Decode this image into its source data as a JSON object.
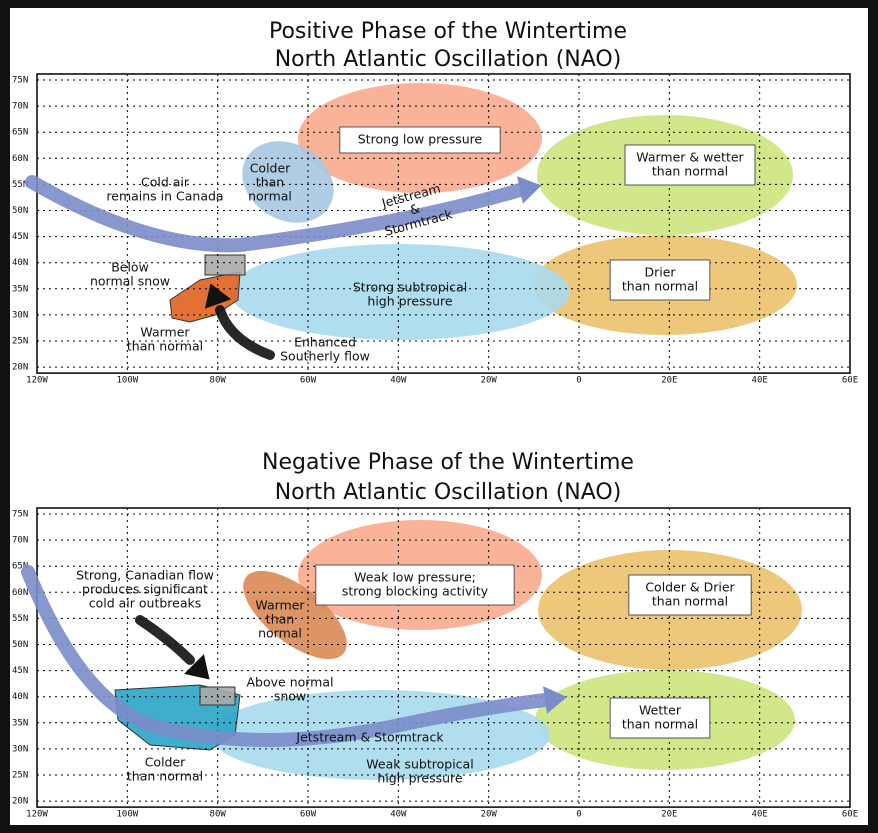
{
  "panels": [
    {
      "title": [
        "Positive Phase of the Wintertime",
        "North Atlantic Oscillation (NAO)"
      ],
      "lat_labels": [
        "75N",
        "70N",
        "65N",
        "60N",
        "55N",
        "50N",
        "45N",
        "40N",
        "35N",
        "30N",
        "25N",
        "20N"
      ],
      "lon_labels": [
        "120W",
        "100W",
        "80W",
        "60W",
        "40W",
        "20W",
        "0",
        "20E",
        "40E",
        "60E"
      ],
      "annotations": [
        {
          "lines": [
            "Strong low pressure"
          ]
        },
        {
          "lines": [
            "Warmer & wetter",
            "than normal"
          ]
        },
        {
          "lines": [
            "Cold air",
            "remains in Canada"
          ]
        },
        {
          "lines": [
            "Colder",
            "than",
            "normal"
          ]
        },
        {
          "lines": [
            "Jetstream",
            "&",
            "Stormtrack"
          ]
        },
        {
          "lines": [
            "Below",
            "normal snow"
          ]
        },
        {
          "lines": [
            "Strong subtropical",
            "high pressure"
          ]
        },
        {
          "lines": [
            "Drier",
            "than normal"
          ]
        },
        {
          "lines": [
            "Warmer",
            "than normal"
          ]
        },
        {
          "lines": [
            "Enhanced",
            "Southerly flow"
          ]
        }
      ]
    },
    {
      "title": [
        "Negative Phase of the Wintertime",
        "North Atlantic Oscillation (NAO)"
      ],
      "lat_labels": [
        "75N",
        "70N",
        "65N",
        "60N",
        "55N",
        "50N",
        "45N",
        "40N",
        "35N",
        "30N",
        "25N",
        "20N"
      ],
      "lon_labels": [
        "120W",
        "100W",
        "80W",
        "60W",
        "40W",
        "20W",
        "0",
        "20E",
        "40E",
        "60E"
      ],
      "annotations": [
        {
          "lines": [
            "Strong, Canadian flow",
            "produces significant",
            "cold air outbreaks"
          ]
        },
        {
          "lines": [
            "Weak low pressure;",
            "strong blocking activity"
          ]
        },
        {
          "lines": [
            "Warmer",
            "than",
            "normal"
          ]
        },
        {
          "lines": [
            "Colder & Drier",
            "than normal"
          ]
        },
        {
          "lines": [
            "Above normal",
            "snow"
          ]
        },
        {
          "lines": [
            "Jetstream & Stormtrack"
          ]
        },
        {
          "lines": [
            "Wetter",
            "than normal"
          ]
        },
        {
          "lines": [
            "Colder",
            "than normal"
          ]
        },
        {
          "lines": [
            "Weak subtropical",
            "high pressure"
          ]
        }
      ]
    }
  ]
}
